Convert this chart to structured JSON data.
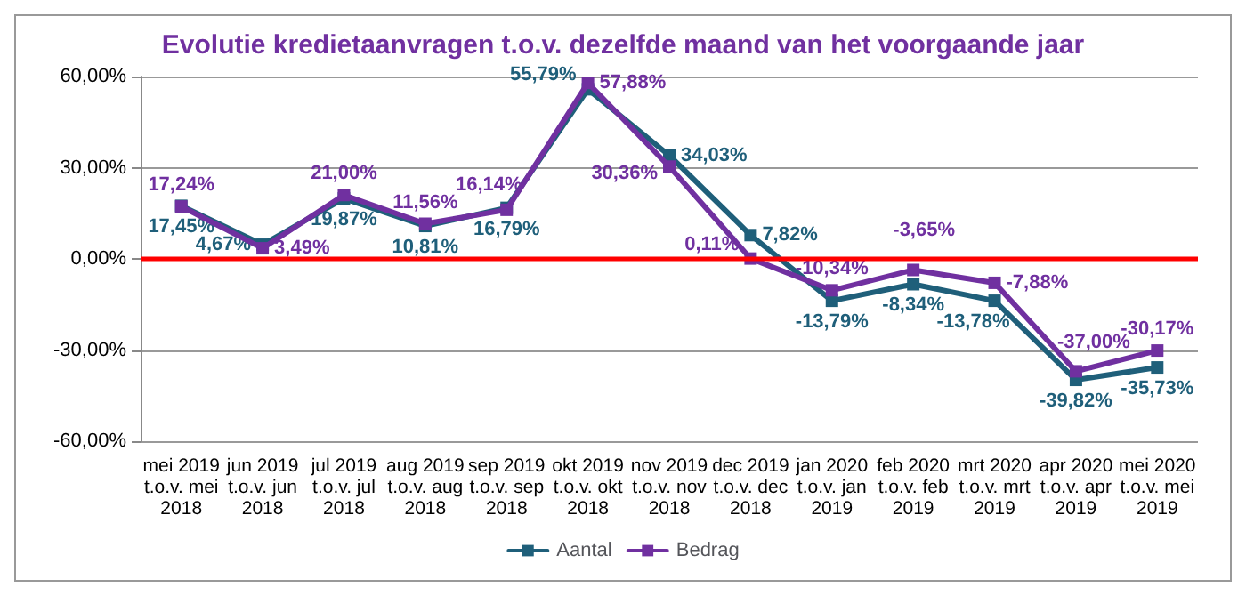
{
  "chart_data": {
    "type": "line",
    "title": "Evolutie kredietaanvragen t.o.v. dezelfde maand van het voorgaande jaar",
    "categories": [
      "mei 2019\nt.o.v. mei\n2018",
      "jun 2019\nt.o.v. jun\n2018",
      "jul 2019\nt.o.v. jul\n2018",
      "aug 2019\nt.o.v. aug\n2018",
      "sep 2019\nt.o.v. sep\n2018",
      "okt 2019\nt.o.v. okt\n2018",
      "nov 2019\nt.o.v. nov\n2018",
      "dec 2019\nt.o.v. dec\n2018",
      "jan 2020\nt.o.v. jan\n2019",
      "feb 2020\nt.o.v. feb\n2019",
      "mrt 2020\nt.o.v. mrt\n2019",
      "apr 2020\nt.o.v. apr\n2019",
      "mei 2020\nt.o.v. mei\n2019"
    ],
    "series": [
      {
        "name": "Aantal",
        "color": "#1f5f7a",
        "values": [
          17.45,
          4.67,
          19.87,
          10.81,
          16.79,
          55.79,
          34.03,
          7.82,
          -13.79,
          -8.34,
          -13.78,
          -39.82,
          -35.73
        ],
        "value_labels": [
          "17,45%",
          "4,67%",
          "19,87%",
          "10,81%",
          "16,79%",
          "55,79%",
          "34,03%",
          "7,82%",
          "-13,79%",
          "-8,34%",
          "-13,78%",
          "-39,82%",
          "-35,73%"
        ]
      },
      {
        "name": "Bedrag",
        "color": "#7030a0",
        "values": [
          17.24,
          3.49,
          21.0,
          11.56,
          16.14,
          57.88,
          30.36,
          0.11,
          -10.34,
          -3.65,
          -7.88,
          -37.0,
          -30.17
        ],
        "value_labels": [
          "17,24%",
          "3,49%",
          "21,00%",
          "11,56%",
          "16,14%",
          "57,88%",
          "30,36%",
          "0,11%",
          "-10,34%",
          "-3,65%",
          "-7,88%",
          "-37,00%",
          "-30,17%"
        ]
      }
    ],
    "ylim": [
      -60,
      60
    ],
    "yticks": [
      {
        "value": -60,
        "label": "-60,00%"
      },
      {
        "value": -30,
        "label": "-30,00%"
      },
      {
        "value": 0,
        "label": "0,00%"
      },
      {
        "value": 30,
        "label": "30,00%"
      },
      {
        "value": 60,
        "label": "60,00%"
      }
    ],
    "ref_lines": [
      {
        "axis": "y",
        "value": 0,
        "color": "#ff0000"
      }
    ],
    "grid": "y",
    "legend": "bottom",
    "marker": "square",
    "line_style": "solid"
  }
}
